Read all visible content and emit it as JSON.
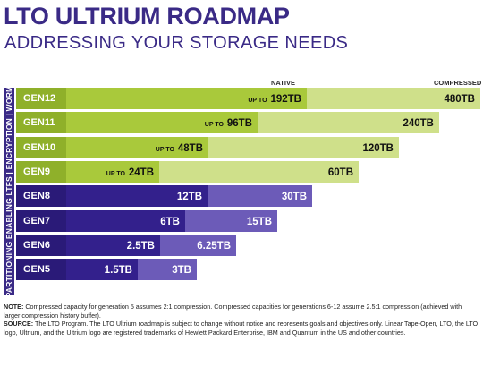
{
  "header": {
    "title": "LTO ULTRIUM ROADMAP",
    "subtitle": "ADDRESSING YOUR STORAGE NEEDS"
  },
  "chart_data": {
    "type": "bar",
    "orientation": "horizontal",
    "legend": {
      "native_label": "NATIVE",
      "compressed_label": "COMPRESSED"
    },
    "side_label": "PARTITIONING ENABLING LTFS | ENCRYPTION | WORM",
    "categories": [
      "GEN12",
      "GEN11",
      "GEN10",
      "GEN9",
      "GEN8",
      "GEN7",
      "GEN6",
      "GEN5"
    ],
    "series": [
      {
        "name": "NATIVE",
        "values": [
          192,
          96,
          48,
          24,
          12,
          6,
          2.5,
          1.5
        ]
      },
      {
        "name": "COMPRESSED",
        "values": [
          480,
          240,
          120,
          60,
          30,
          15,
          6.25,
          3
        ]
      }
    ],
    "native_labels": [
      {
        "prefix": "UP TO ",
        "text": "192TB"
      },
      {
        "prefix": "UP TO ",
        "text": "96TB"
      },
      {
        "prefix": "UP TO ",
        "text": "48TB"
      },
      {
        "prefix": "UP TO ",
        "text": "24TB"
      },
      {
        "prefix": "",
        "text": "12TB"
      },
      {
        "prefix": "",
        "text": "6TB"
      },
      {
        "prefix": "",
        "text": "2.5TB"
      },
      {
        "prefix": "",
        "text": "1.5TB"
      }
    ],
    "compressed_labels": [
      "480TB",
      "240TB",
      "120TB",
      "60TB",
      "30TB",
      "15TB",
      "6.25TB",
      "3TB"
    ],
    "colors": {
      "future_native": "#a9c93b",
      "future_compressed": "#cfe08a",
      "future_gen": "#8fb02a",
      "current_native": "#33208c",
      "current_compressed": "#6c5bb8",
      "current_gen": "#2a1a78",
      "side_band": "#3a2a86"
    }
  },
  "notes": {
    "note_label": "NOTE:",
    "note_text": " Compressed capacity for generation 5 assumes 2:1 compression. Compressed capacities for generations 6-12 assume 2.5:1 compression (achieved with larger compression history buffer).",
    "source_label": "SOURCE:",
    "source_text": " The LTO Program. The LTO Ultrium roadmap is subject to change without notice and represents goals and objectives only. Linear Tape-Open, LTO, the LTO logo, Ultrium, and the Ultrium logo are registered trademarks of Hewlett Packard Enterprise, IBM and Quantum in the US and other countries."
  }
}
